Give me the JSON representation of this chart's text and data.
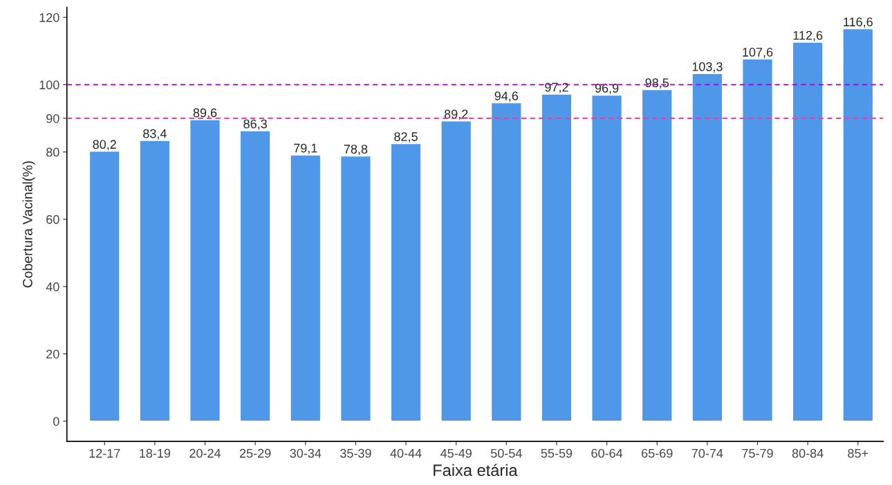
{
  "chart_data": {
    "type": "bar",
    "xlabel": "Faixa etária",
    "ylabel": "Cobertura Vacinal(%)",
    "categories": [
      "12-17",
      "18-19",
      "20-24",
      "25-29",
      "30-34",
      "35-39",
      "40-44",
      "45-49",
      "50-54",
      "55-59",
      "60-64",
      "65-69",
      "70-74",
      "75-79",
      "80-84",
      "85+"
    ],
    "values": [
      80.2,
      83.4,
      89.6,
      86.3,
      79.1,
      78.8,
      82.5,
      89.2,
      94.6,
      97.2,
      96.9,
      98.5,
      103.3,
      107.6,
      112.6,
      116.6
    ],
    "value_labels": [
      "80,2",
      "83,4",
      "89,6",
      "86,3",
      "79,1",
      "78,8",
      "82,5",
      "89,2",
      "94,6",
      "97,2",
      "96,9",
      "98,5",
      "103,3",
      "107,6",
      "112,6",
      "116,6"
    ],
    "color": "#4f97e8",
    "ylim": [
      -6,
      123
    ],
    "yticks": [
      0,
      20,
      40,
      60,
      80,
      90,
      100,
      120
    ],
    "ref_lines": [
      {
        "axis": "y",
        "value": 100,
        "color": "#a100c8",
        "line_style": "dashed"
      },
      {
        "axis": "y",
        "value": 90,
        "color": "#ff3399",
        "line_style": "dashed"
      }
    ],
    "grid": false,
    "legend": false
  }
}
